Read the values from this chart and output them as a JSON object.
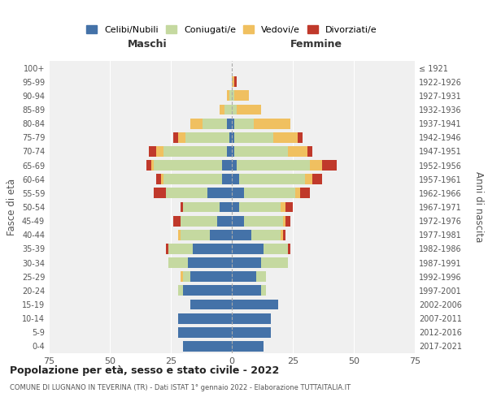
{
  "age_groups": [
    "100+",
    "95-99",
    "90-94",
    "85-89",
    "80-84",
    "75-79",
    "70-74",
    "65-69",
    "60-64",
    "55-59",
    "50-54",
    "45-49",
    "40-44",
    "35-39",
    "30-34",
    "25-29",
    "20-24",
    "15-19",
    "10-14",
    "5-9",
    "0-4"
  ],
  "birth_years": [
    "≤ 1921",
    "1922-1926",
    "1927-1931",
    "1932-1936",
    "1937-1941",
    "1942-1946",
    "1947-1951",
    "1952-1956",
    "1957-1961",
    "1962-1966",
    "1967-1971",
    "1972-1976",
    "1977-1981",
    "1982-1986",
    "1987-1991",
    "1992-1996",
    "1997-2001",
    "2002-2006",
    "2007-2011",
    "2012-2016",
    "2017-2021"
  ],
  "maschi": {
    "celibi": [
      0,
      0,
      0,
      0,
      2,
      1,
      2,
      4,
      4,
      10,
      5,
      6,
      9,
      16,
      18,
      17,
      20,
      17,
      22,
      22,
      20
    ],
    "coniugati": [
      0,
      0,
      1,
      3,
      10,
      18,
      26,
      28,
      24,
      17,
      15,
      15,
      12,
      10,
      8,
      3,
      2,
      0,
      0,
      0,
      0
    ],
    "vedovi": [
      0,
      0,
      1,
      2,
      5,
      3,
      3,
      1,
      1,
      0,
      0,
      0,
      1,
      0,
      0,
      1,
      0,
      0,
      0,
      0,
      0
    ],
    "divorziati": [
      0,
      0,
      0,
      0,
      0,
      2,
      3,
      2,
      2,
      5,
      1,
      3,
      0,
      1,
      0,
      0,
      0,
      0,
      0,
      0,
      0
    ]
  },
  "femmine": {
    "nubili": [
      0,
      0,
      0,
      0,
      1,
      1,
      1,
      2,
      3,
      5,
      3,
      5,
      8,
      13,
      12,
      10,
      12,
      19,
      16,
      16,
      13
    ],
    "coniugate": [
      0,
      0,
      1,
      2,
      8,
      16,
      22,
      30,
      27,
      21,
      17,
      16,
      12,
      10,
      11,
      4,
      2,
      0,
      0,
      0,
      0
    ],
    "vedove": [
      0,
      1,
      6,
      10,
      15,
      10,
      8,
      5,
      3,
      2,
      2,
      1,
      1,
      0,
      0,
      0,
      0,
      0,
      0,
      0,
      0
    ],
    "divorziate": [
      0,
      1,
      0,
      0,
      0,
      2,
      2,
      6,
      4,
      4,
      3,
      2,
      1,
      1,
      0,
      0,
      0,
      0,
      0,
      0,
      0
    ]
  },
  "colors": {
    "celibi": "#4472a8",
    "coniugati": "#c5d9a0",
    "vedovi": "#f0c060",
    "divorziati": "#c0392b"
  },
  "xlim": 75,
  "title": "Popolazione per età, sesso e stato civile - 2022",
  "subtitle": "COMUNE DI LUGNANO IN TEVERINA (TR) - Dati ISTAT 1° gennaio 2022 - Elaborazione TUTTAITALIA.IT",
  "ylabel_left": "Fasce di età",
  "ylabel_right": "Anni di nascita",
  "legend_labels": [
    "Celibi/Nubili",
    "Coniugati/e",
    "Vedovi/e",
    "Divorziati/e"
  ],
  "header_maschi": "Maschi",
  "header_femmine": "Femmine",
  "bg_color": "#f0f0f0"
}
